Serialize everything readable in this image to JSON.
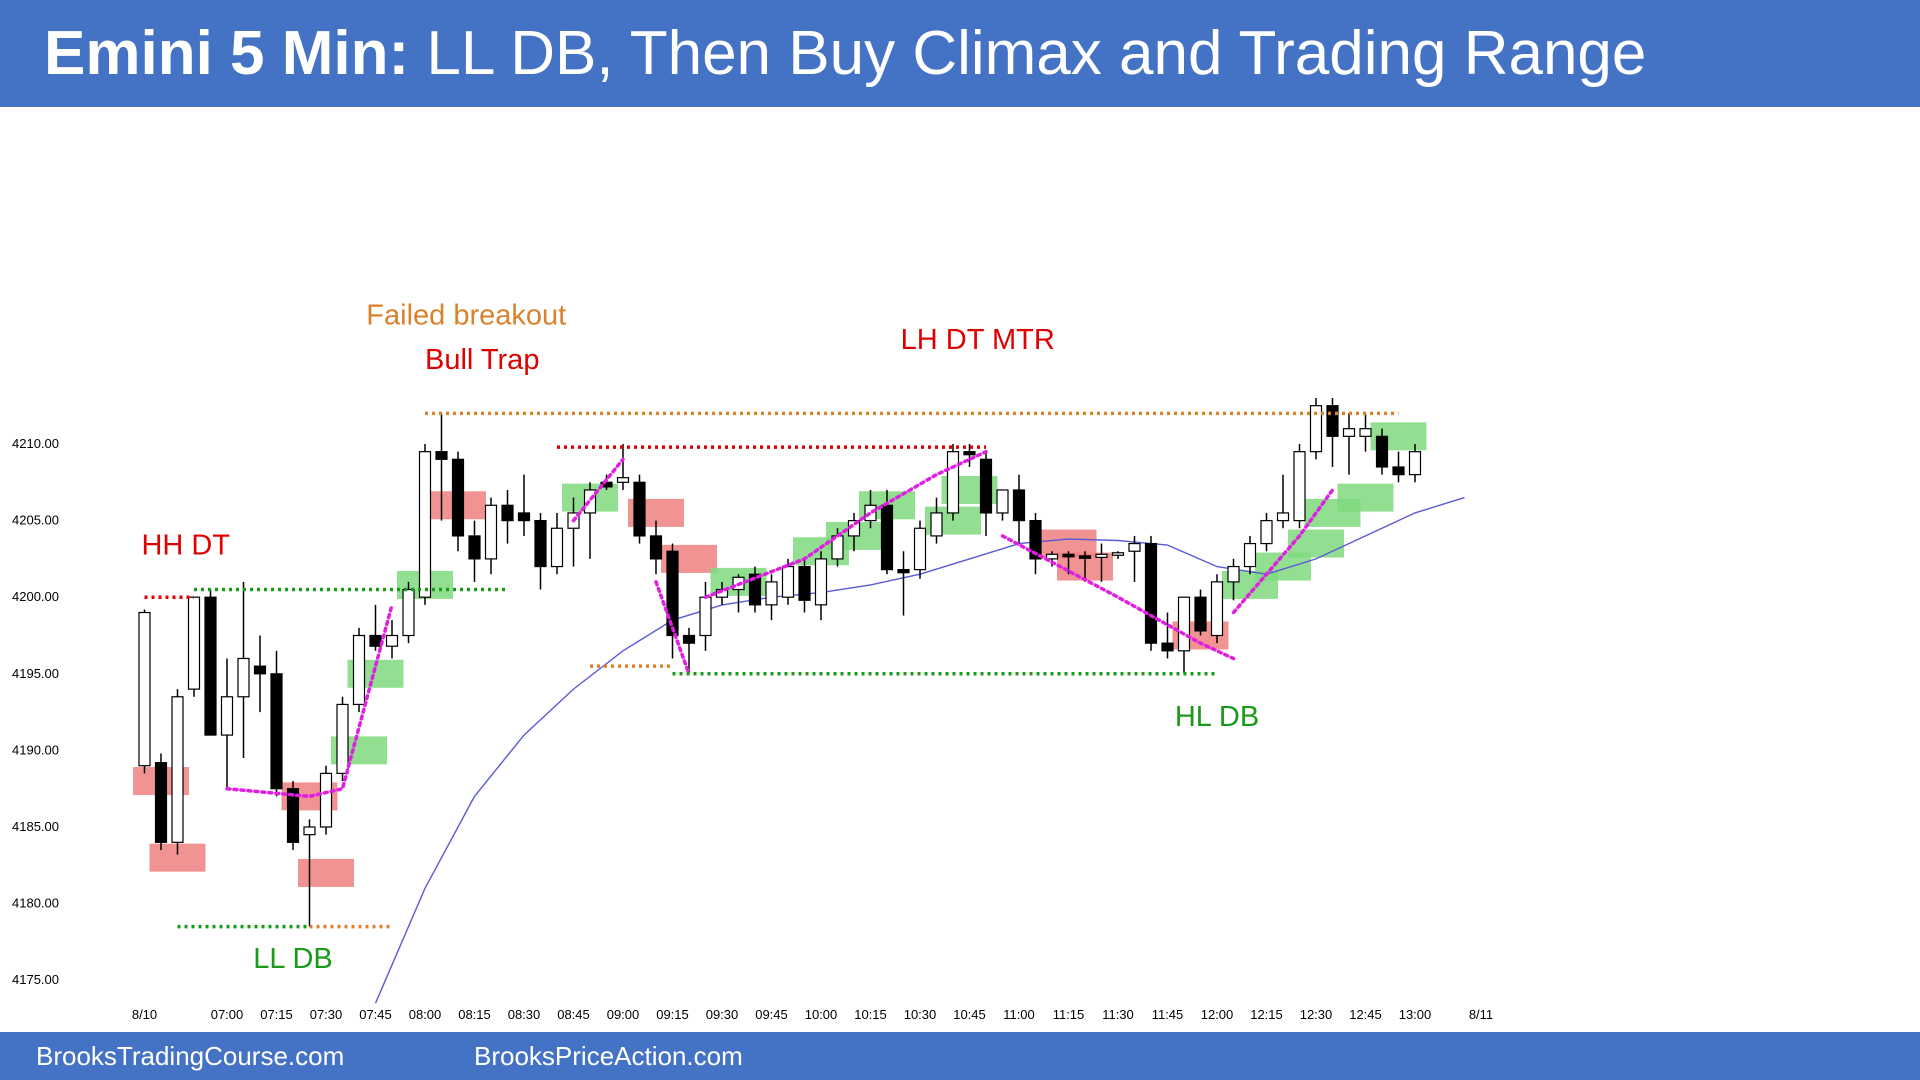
{
  "header": {
    "title_bold": "Emini 5 Min:",
    "title_rest": "LL DB, Then Buy Climax and Trading Range"
  },
  "footer": {
    "left_link": "BrooksTradingCourse.com",
    "right_link": "BrooksPriceAction.com"
  },
  "colors": {
    "header_bg": "#4472c4",
    "bull_bar": "#ffffff",
    "bear_bar": "#000000",
    "bull_signal": "#7fd97f",
    "bear_signal": "#f08080",
    "ema": "#5b5bd6",
    "bear_label": "#e00000",
    "bull_label": "#1a9a1a",
    "note_label": "#d9822b",
    "wedge_dots": "#e020e0"
  },
  "chart_data": {
    "type": "candlestick",
    "title": "",
    "xlabel": "",
    "ylabel": "",
    "ylim": [
      4173,
      4216
    ],
    "yticks": [
      "4210.00",
      "4205.00",
      "4200.00",
      "4195.00",
      "4190.00",
      "4185.00",
      "4180.00",
      "4175.00"
    ],
    "ytick_values": [
      4210,
      4205,
      4200,
      4195,
      4190,
      4185,
      4180,
      4175
    ],
    "xticks": [
      "8/10",
      "07:00",
      "07:15",
      "07:30",
      "07:45",
      "08:00",
      "08:15",
      "08:30",
      "08:45",
      "09:00",
      "09:15",
      "09:30",
      "09:45",
      "10:00",
      "10:15",
      "10:30",
      "10:45",
      "11:00",
      "11:15",
      "11:30",
      "11:45",
      "12:00",
      "12:15",
      "12:30",
      "12:45",
      "13:00",
      "8/11"
    ],
    "xtick_bars": [
      0,
      5,
      8,
      11,
      14,
      17,
      20,
      23,
      26,
      29,
      32,
      35,
      38,
      41,
      44,
      47,
      50,
      53,
      56,
      59,
      62,
      65,
      68,
      71,
      74,
      77,
      81
    ],
    "bars": [
      {
        "o": 4189.0,
        "h": 4199.2,
        "l": 4188.5,
        "c": 4199.0
      },
      {
        "o": 4189.2,
        "h": 4189.8,
        "l": 4183.5,
        "c": 4184.0
      },
      {
        "o": 4184.0,
        "h": 4194.0,
        "l": 4183.2,
        "c": 4193.5
      },
      {
        "o": 4194.0,
        "h": 4200.0,
        "l": 4193.5,
        "c": 4200.0
      },
      {
        "o": 4200.0,
        "h": 4200.5,
        "l": 4191.0,
        "c": 4191.0
      },
      {
        "o": 4191.0,
        "h": 4196.0,
        "l": 4187.5,
        "c": 4193.5
      },
      {
        "o": 4193.5,
        "h": 4201.0,
        "l": 4189.5,
        "c": 4196.0
      },
      {
        "o": 4195.5,
        "h": 4197.5,
        "l": 4192.5,
        "c": 4195.0
      },
      {
        "o": 4195.0,
        "h": 4196.5,
        "l": 4187.0,
        "c": 4187.5
      },
      {
        "o": 4187.5,
        "h": 4188.0,
        "l": 4183.5,
        "c": 4184.0
      },
      {
        "o": 4184.5,
        "h": 4185.5,
        "l": 4178.5,
        "c": 4185.0
      },
      {
        "o": 4185.0,
        "h": 4189.0,
        "l": 4184.5,
        "c": 4188.5
      },
      {
        "o": 4188.5,
        "h": 4193.5,
        "l": 4188.0,
        "c": 4193.0
      },
      {
        "o": 4193.0,
        "h": 4198.0,
        "l": 4192.5,
        "c": 4197.5
      },
      {
        "o": 4197.5,
        "h": 4199.5,
        "l": 4196.5,
        "c": 4196.8
      },
      {
        "o": 4196.8,
        "h": 4198.5,
        "l": 4196.0,
        "c": 4197.5
      },
      {
        "o": 4197.5,
        "h": 4201.0,
        "l": 4197.0,
        "c": 4200.5
      },
      {
        "o": 4200.0,
        "h": 4210.0,
        "l": 4199.5,
        "c": 4209.5
      },
      {
        "o": 4209.5,
        "h": 4212.0,
        "l": 4205.0,
        "c": 4209.0
      },
      {
        "o": 4209.0,
        "h": 4209.5,
        "l": 4203.0,
        "c": 4204.0
      },
      {
        "o": 4204.0,
        "h": 4205.0,
        "l": 4201.0,
        "c": 4202.5
      },
      {
        "o": 4202.5,
        "h": 4206.5,
        "l": 4201.5,
        "c": 4206.0
      },
      {
        "o": 4206.0,
        "h": 4207.0,
        "l": 4203.5,
        "c": 4205.0
      },
      {
        "o": 4205.5,
        "h": 4208.0,
        "l": 4204.0,
        "c": 4205.0
      },
      {
        "o": 4205.0,
        "h": 4205.5,
        "l": 4200.5,
        "c": 4202.0
      },
      {
        "o": 4202.0,
        "h": 4205.5,
        "l": 4201.5,
        "c": 4204.5
      },
      {
        "o": 4204.5,
        "h": 4206.5,
        "l": 4202.0,
        "c": 4205.5
      },
      {
        "o": 4205.5,
        "h": 4207.5,
        "l": 4202.5,
        "c": 4207.0
      },
      {
        "o": 4207.5,
        "h": 4208.0,
        "l": 4207.0,
        "c": 4207.2
      },
      {
        "o": 4207.5,
        "h": 4210.0,
        "l": 4207.0,
        "c": 4207.8
      },
      {
        "o": 4207.5,
        "h": 4208.0,
        "l": 4203.5,
        "c": 4204.0
      },
      {
        "o": 4204.0,
        "h": 4205.0,
        "l": 4201.5,
        "c": 4202.5
      },
      {
        "o": 4203.0,
        "h": 4203.5,
        "l": 4196.0,
        "c": 4197.5
      },
      {
        "o": 4197.5,
        "h": 4198.0,
        "l": 4195.0,
        "c": 4197.0
      },
      {
        "o": 4197.5,
        "h": 4201.0,
        "l": 4196.5,
        "c": 4200.0
      },
      {
        "o": 4200.0,
        "h": 4201.0,
        "l": 4199.5,
        "c": 4200.5
      },
      {
        "o": 4200.5,
        "h": 4201.5,
        "l": 4199.0,
        "c": 4201.3
      },
      {
        "o": 4201.5,
        "h": 4202.0,
        "l": 4199.0,
        "c": 4199.5
      },
      {
        "o": 4199.5,
        "h": 4201.5,
        "l": 4198.5,
        "c": 4201.0
      },
      {
        "o": 4200.0,
        "h": 4202.5,
        "l": 4199.5,
        "c": 4202.0
      },
      {
        "o": 4202.0,
        "h": 4202.5,
        "l": 4199.0,
        "c": 4199.8
      },
      {
        "o": 4199.5,
        "h": 4203.0,
        "l": 4198.5,
        "c": 4202.5
      },
      {
        "o": 4202.5,
        "h": 4204.5,
        "l": 4202.0,
        "c": 4204.0
      },
      {
        "o": 4204.0,
        "h": 4205.5,
        "l": 4203.0,
        "c": 4205.0
      },
      {
        "o": 4205.0,
        "h": 4207.0,
        "l": 4204.5,
        "c": 4206.0
      },
      {
        "o": 4206.0,
        "h": 4207.0,
        "l": 4201.5,
        "c": 4201.8
      },
      {
        "o": 4201.8,
        "h": 4203.0,
        "l": 4198.8,
        "c": 4201.6
      },
      {
        "o": 4201.8,
        "h": 4205.0,
        "l": 4201.2,
        "c": 4204.5
      },
      {
        "o": 4204.0,
        "h": 4206.5,
        "l": 4203.5,
        "c": 4205.5
      },
      {
        "o": 4205.5,
        "h": 4210.0,
        "l": 4205.0,
        "c": 4209.5
      },
      {
        "o": 4209.5,
        "h": 4210.0,
        "l": 4208.5,
        "c": 4209.3
      },
      {
        "o": 4209.0,
        "h": 4209.5,
        "l": 4204.0,
        "c": 4205.5
      },
      {
        "o": 4205.5,
        "h": 4207.0,
        "l": 4205.0,
        "c": 4207.0
      },
      {
        "o": 4207.0,
        "h": 4208.0,
        "l": 4203.5,
        "c": 4205.0
      },
      {
        "o": 4205.0,
        "h": 4205.5,
        "l": 4201.5,
        "c": 4202.5
      },
      {
        "o": 4202.5,
        "h": 4203.0,
        "l": 4202.0,
        "c": 4202.8
      },
      {
        "o": 4202.8,
        "h": 4203.0,
        "l": 4201.5,
        "c": 4202.7
      },
      {
        "o": 4202.7,
        "h": 4203.0,
        "l": 4201.0,
        "c": 4202.6
      },
      {
        "o": 4202.6,
        "h": 4203.5,
        "l": 4201.0,
        "c": 4202.8
      },
      {
        "o": 4202.8,
        "h": 4203.0,
        "l": 4202.5,
        "c": 4202.9
      },
      {
        "o": 4203.0,
        "h": 4204.0,
        "l": 4201.0,
        "c": 4203.5
      },
      {
        "o": 4203.5,
        "h": 4204.0,
        "l": 4196.5,
        "c": 4197.0
      },
      {
        "o": 4197.0,
        "h": 4199.0,
        "l": 4196.0,
        "c": 4196.5
      },
      {
        "o": 4196.5,
        "h": 4200.0,
        "l": 4195.0,
        "c": 4200.0
      },
      {
        "o": 4200.0,
        "h": 4200.5,
        "l": 4197.5,
        "c": 4197.8
      },
      {
        "o": 4197.5,
        "h": 4201.5,
        "l": 4197.0,
        "c": 4201.0
      },
      {
        "o": 4201.0,
        "h": 4202.5,
        "l": 4199.8,
        "c": 4202.0
      },
      {
        "o": 4202.0,
        "h": 4204.0,
        "l": 4201.5,
        "c": 4203.5
      },
      {
        "o": 4203.5,
        "h": 4205.5,
        "l": 4203.0,
        "c": 4205.0
      },
      {
        "o": 4205.0,
        "h": 4208.0,
        "l": 4204.5,
        "c": 4205.5
      },
      {
        "o": 4205.0,
        "h": 4210.0,
        "l": 4204.5,
        "c": 4209.5
      },
      {
        "o": 4209.5,
        "h": 4213.0,
        "l": 4209.0,
        "c": 4212.5
      },
      {
        "o": 4212.5,
        "h": 4213.0,
        "l": 4208.5,
        "c": 4210.5
      },
      {
        "o": 4210.5,
        "h": 4212.0,
        "l": 4208.0,
        "c": 4211.0
      },
      {
        "o": 4210.5,
        "h": 4212.0,
        "l": 4209.5,
        "c": 4211.0
      },
      {
        "o": 4210.5,
        "h": 4211.0,
        "l": 4208.0,
        "c": 4208.5
      },
      {
        "o": 4208.5,
        "h": 4209.5,
        "l": 4207.5,
        "c": 4208.0
      },
      {
        "o": 4208.0,
        "h": 4210.0,
        "l": 4207.5,
        "c": 4209.5
      }
    ],
    "ema": [
      [
        14,
        4173.5
      ],
      [
        17,
        4181
      ],
      [
        20,
        4187
      ],
      [
        23,
        4191
      ],
      [
        26,
        4194
      ],
      [
        29,
        4196.5
      ],
      [
        32,
        4198.5
      ],
      [
        35,
        4199.5
      ],
      [
        38,
        4200
      ],
      [
        41,
        4200.3
      ],
      [
        44,
        4200.8
      ],
      [
        47,
        4201.5
      ],
      [
        50,
        4202.5
      ],
      [
        53,
        4203.5
      ],
      [
        56,
        4203.8
      ],
      [
        59,
        4203.7
      ],
      [
        62,
        4203.4
      ],
      [
        65,
        4202
      ],
      [
        68,
        4201.5
      ],
      [
        71,
        4202.5
      ],
      [
        74,
        4204
      ],
      [
        77,
        4205.5
      ],
      [
        80,
        4206.5
      ]
    ],
    "signal_boxes": [
      {
        "bar": 1,
        "y": 4188,
        "type": "bear"
      },
      {
        "bar": 2,
        "y": 4183,
        "type": "bear"
      },
      {
        "bar": 10,
        "y": 4187,
        "type": "bear"
      },
      {
        "bar": 11,
        "y": 4182,
        "type": "bear"
      },
      {
        "bar": 13,
        "y": 4190,
        "type": "bull"
      },
      {
        "bar": 14,
        "y": 4195,
        "type": "bull"
      },
      {
        "bar": 17,
        "y": 4200.8,
        "type": "bull"
      },
      {
        "bar": 19,
        "y": 4206,
        "type": "bear"
      },
      {
        "bar": 27,
        "y": 4206.5,
        "type": "bull"
      },
      {
        "bar": 31,
        "y": 4205.5,
        "type": "bear"
      },
      {
        "bar": 33,
        "y": 4202.5,
        "type": "bear"
      },
      {
        "bar": 36,
        "y": 4201,
        "type": "bull"
      },
      {
        "bar": 41,
        "y": 4203,
        "type": "bull"
      },
      {
        "bar": 43,
        "y": 4204,
        "type": "bull"
      },
      {
        "bar": 45,
        "y": 4206,
        "type": "bull"
      },
      {
        "bar": 49,
        "y": 4205,
        "type": "bull"
      },
      {
        "bar": 50,
        "y": 4207,
        "type": "bull"
      },
      {
        "bar": 56,
        "y": 4203.5,
        "type": "bear"
      },
      {
        "bar": 57,
        "y": 4202,
        "type": "bear"
      },
      {
        "bar": 64,
        "y": 4197.5,
        "type": "bear"
      },
      {
        "bar": 67,
        "y": 4200.8,
        "type": "bull"
      },
      {
        "bar": 69,
        "y": 4202,
        "type": "bull"
      },
      {
        "bar": 71,
        "y": 4203.5,
        "type": "bull"
      },
      {
        "bar": 72,
        "y": 4205.5,
        "type": "bull"
      },
      {
        "bar": 74,
        "y": 4206.5,
        "type": "bull"
      },
      {
        "bar": 76,
        "y": 4210.5,
        "type": "bull"
      }
    ],
    "levels": [
      {
        "x1": 0,
        "x2": 3,
        "y": 4200,
        "color": "bear"
      },
      {
        "x1": 3,
        "x2": 22,
        "y": 4200.5,
        "color": "bull"
      },
      {
        "x1": 2,
        "x2": 10,
        "y": 4178.5,
        "color": "bull"
      },
      {
        "x1": 10,
        "x2": 15,
        "y": 4178.5,
        "color": "note"
      },
      {
        "x1": 17,
        "x2": 76,
        "y": 4212,
        "color": "note"
      },
      {
        "x1": 25,
        "x2": 51,
        "y": 4209.8,
        "color": "bear"
      },
      {
        "x1": 27,
        "x2": 32,
        "y": 4195.5,
        "color": "note"
      },
      {
        "x1": 32,
        "x2": 65,
        "y": 4195,
        "color": "bull"
      }
    ],
    "wedges": [
      [
        [
          5,
          4187.5
        ],
        [
          10,
          4187
        ],
        [
          12,
          4187.5
        ],
        [
          15,
          4199.5
        ]
      ],
      [
        [
          26,
          4205
        ],
        [
          29,
          4209
        ]
      ],
      [
        [
          31,
          4201
        ],
        [
          33,
          4195
        ]
      ],
      [
        [
          34,
          4200
        ],
        [
          40,
          4202.5
        ],
        [
          44,
          4205.5
        ],
        [
          48,
          4208
        ],
        [
          51,
          4209.5
        ]
      ],
      [
        [
          52,
          4204
        ],
        [
          59,
          4200
        ],
        [
          64,
          4197
        ],
        [
          66,
          4196
        ]
      ],
      [
        [
          66,
          4199
        ],
        [
          70,
          4204
        ],
        [
          72,
          4207
        ]
      ]
    ],
    "annotations": [
      {
        "text": "HH DT",
        "bar": 2.5,
        "y": 4202.8,
        "color": "bear"
      },
      {
        "text": "LL DB",
        "bar": 9,
        "y": 4175.8,
        "color": "bull"
      },
      {
        "text": "Failed breakout",
        "bar": 19.5,
        "y": 4217.8,
        "color": "note"
      },
      {
        "text": "Bull Trap",
        "bar": 17,
        "y": 4214.9,
        "color": "bear",
        "align": "start"
      },
      {
        "text": "LH DT MTR",
        "bar": 50.5,
        "y": 4216.2,
        "color": "bear"
      },
      {
        "text": "HL DB",
        "bar": 65,
        "y": 4191.6,
        "color": "bull"
      }
    ]
  }
}
